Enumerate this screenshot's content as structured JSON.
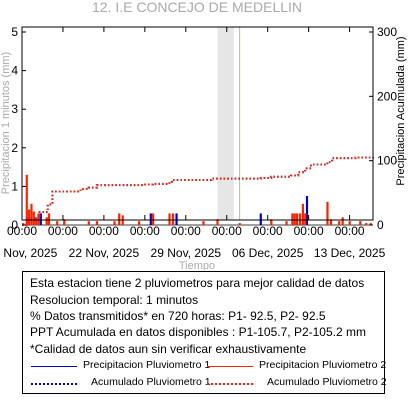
{
  "chart_data": {
    "type": "bar",
    "title": "12. I.E CONCEJO DE MEDELLIN",
    "xlabel": "Tiempo",
    "ylabel_left": "Precipitacion 1 minutos (mm)",
    "ylabel_right": "Precipitacion Acumulada (mm)",
    "x_range": [
      "2025-11-15",
      "2025-12-15"
    ],
    "x_ticks": [
      {
        "date": "2025-11-15",
        "label": "15 Nov, 2025"
      },
      {
        "date": "2025-11-22",
        "label": "22 Nov, 2025"
      },
      {
        "date": "2025-11-29",
        "label": "29 Nov, 2025"
      },
      {
        "date": "2025-12-06",
        "label": "06 Dec, 2025"
      },
      {
        "date": "2025-12-13",
        "label": "13 Dec, 2025"
      }
    ],
    "x_tick_time_label": "00:00",
    "x_time_ticks": [
      "2025-11-15",
      "2025-11-18.5",
      "2025-11-22",
      "2025-11-25.5",
      "2025-11-29",
      "2025-12-02.5",
      "2025-12-06",
      "2025-12-09.5",
      "2025-12-13"
    ],
    "ylim_left": [
      0,
      5
    ],
    "yticks_left": [
      0,
      1,
      2,
      3,
      4,
      5
    ],
    "ylim_right": [
      0,
      300
    ],
    "yticks_right": [
      0,
      100,
      200,
      300
    ],
    "gray_band": {
      "start": "2025-12-01.7",
      "end": "2025-12-03.1",
      "color": "#e6e6e6"
    },
    "now_line": {
      "date": "2025-12-03.6",
      "color": "#88dd66"
    },
    "series": [
      {
        "name": "Precipitacion Pluviometro 1",
        "kind": "bar",
        "color": "#0000cc",
        "points": [
          [
            1.6,
            0.3
          ],
          [
            11.0,
            0.3
          ],
          [
            13.2,
            0.3
          ],
          [
            20.4,
            0.3
          ],
          [
            24.35,
            0.75
          ]
        ]
      },
      {
        "name": "Precipitacion Pluviometro 2",
        "kind": "bar",
        "color": "#ff2200",
        "points": [
          [
            0.1,
            0.05
          ],
          [
            0.4,
            1.3
          ],
          [
            0.6,
            0.4
          ],
          [
            0.8,
            0.55
          ],
          [
            1.0,
            0.35
          ],
          [
            1.2,
            0.2
          ],
          [
            1.4,
            0.3
          ],
          [
            2.1,
            0.2
          ],
          [
            2.3,
            0.3
          ],
          [
            3.0,
            0.1
          ],
          [
            3.6,
            0.15
          ],
          [
            5.7,
            0.1
          ],
          [
            6.4,
            0.1
          ],
          [
            7.9,
            0.1
          ],
          [
            8.3,
            0.3
          ],
          [
            8.6,
            0.25
          ],
          [
            10.0,
            0.1
          ],
          [
            11.2,
            0.3
          ],
          [
            12.6,
            0.3
          ],
          [
            12.9,
            0.3
          ],
          [
            15.5,
            0.1
          ],
          [
            16.7,
            0.15
          ],
          [
            18.6,
            0.05
          ],
          [
            21.3,
            0.15
          ],
          [
            22.6,
            0.1
          ],
          [
            23.1,
            0.3
          ],
          [
            23.3,
            0.3
          ],
          [
            23.5,
            0.3
          ],
          [
            23.75,
            0.3
          ],
          [
            24.0,
            0.55
          ],
          [
            24.2,
            0.3
          ],
          [
            26.1,
            0.6
          ],
          [
            26.4,
            0.15
          ],
          [
            27.1,
            0.1
          ],
          [
            27.4,
            0.2
          ],
          [
            28.0,
            0.1
          ],
          [
            28.9,
            0.1
          ],
          [
            29.4,
            0.05
          ],
          [
            29.8,
            0.05
          ]
        ]
      },
      {
        "name": "Acumulado Pluviometro 1",
        "kind": "line",
        "style": "dotted",
        "color": "#0000cc",
        "points": [
          [
            0,
            0
          ],
          [
            0.5,
            10
          ],
          [
            1.5,
            20
          ],
          [
            2.2,
            32
          ],
          [
            2.6,
            52
          ],
          [
            5.0,
            56
          ],
          [
            5.7,
            58
          ],
          [
            6.4,
            62
          ],
          [
            10.4,
            63
          ],
          [
            11.2,
            64
          ],
          [
            12.6,
            67
          ],
          [
            12.8,
            70
          ],
          [
            16.2,
            72
          ],
          [
            20.4,
            73
          ],
          [
            21.3,
            75
          ],
          [
            23.0,
            77
          ],
          [
            23.6,
            82
          ],
          [
            24.2,
            88
          ],
          [
            24.7,
            94
          ],
          [
            26.1,
            98
          ],
          [
            26.5,
            104
          ],
          [
            28.5,
            105
          ],
          [
            30,
            105.7
          ]
        ]
      },
      {
        "name": "Acumulado Pluviometro 2",
        "kind": "line",
        "style": "dotted",
        "color": "#ff2200",
        "points": [
          [
            0,
            0
          ],
          [
            0.5,
            10
          ],
          [
            1.5,
            20
          ],
          [
            2.2,
            32
          ],
          [
            2.6,
            52
          ],
          [
            5.0,
            56
          ],
          [
            5.7,
            58
          ],
          [
            6.4,
            62
          ],
          [
            10.4,
            63
          ],
          [
            11.2,
            64
          ],
          [
            12.6,
            67
          ],
          [
            12.8,
            70
          ],
          [
            16.2,
            72
          ],
          [
            20.4,
            73
          ],
          [
            21.3,
            75
          ],
          [
            23.0,
            77
          ],
          [
            23.6,
            82
          ],
          [
            24.2,
            88
          ],
          [
            24.7,
            94
          ],
          [
            26.1,
            98
          ],
          [
            26.5,
            104
          ],
          [
            28.5,
            105
          ],
          [
            30,
            105.2
          ]
        ]
      }
    ],
    "grid": false,
    "legend": "bottom"
  },
  "info": {
    "lines": [
      "Esta estacion tiene 2 pluviometros para mejor calidad de datos",
      "Resolucion temporal: 1 minutos",
      "% Datos transmitidos* en 720 horas: P1- 92.5, P2- 92.5",
      "PPT Acumulada en datos disponibles : P1-105.7, P2-105.2 mm",
      "*Calidad de datos aun sin verificar exhaustivamente"
    ]
  },
  "legend": {
    "p1_label": "Precipitacion Pluviometro 1",
    "p2_label": "Precipitacion Pluviometro 2",
    "a1_label": "Acumulado Pluviometro 1",
    "a2_label": "Acumulado Pluviometro 2",
    "p1_color": "#0000cc",
    "p2_color": "#ff2200"
  }
}
